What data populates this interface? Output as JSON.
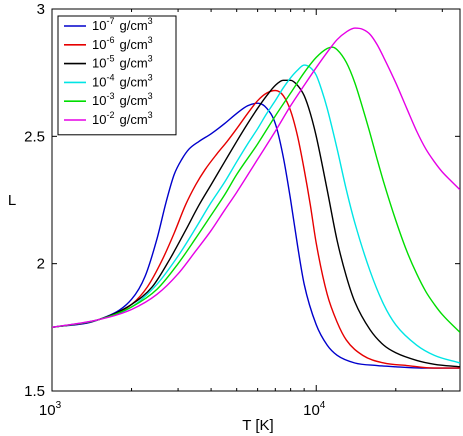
{
  "chart_data": {
    "type": "line",
    "title": "",
    "xlabel": "T [K]",
    "ylabel": "L",
    "xscale": "log",
    "xlim": [
      1000,
      35000
    ],
    "ylim": [
      1.5,
      3.0
    ],
    "grid": false,
    "legend_position": "top-left",
    "x_ticks": [
      {
        "value": 1000,
        "base": "10",
        "exp": "3"
      },
      {
        "value": 10000,
        "base": "10",
        "exp": "4"
      }
    ],
    "y_ticks": [
      {
        "value": 1.5,
        "label": "1.5"
      },
      {
        "value": 2.0,
        "label": "2"
      },
      {
        "value": 2.5,
        "label": "2.5"
      },
      {
        "value": 3.0,
        "label": "3"
      }
    ],
    "series": [
      {
        "name": "10-7 g/cm3",
        "legend_base": "10",
        "legend_exp": "-7",
        "legend_unit": "g/cm",
        "legend_unit_exp": "3",
        "color": "#0000cc",
        "x": [
          1000,
          1500,
          2000,
          2250,
          2500,
          2700,
          2900,
          3100,
          3300,
          3600,
          4000,
          4500,
          5000,
          5500,
          6000,
          6500,
          7000,
          7500,
          8000,
          8500,
          9000,
          10000,
          11000,
          12000,
          14000,
          17000,
          20000,
          25000,
          30000,
          35000
        ],
        "y": [
          1.75,
          1.78,
          1.86,
          1.95,
          2.1,
          2.24,
          2.35,
          2.41,
          2.45,
          2.48,
          2.51,
          2.55,
          2.59,
          2.62,
          2.63,
          2.61,
          2.55,
          2.42,
          2.25,
          2.07,
          1.92,
          1.76,
          1.68,
          1.64,
          1.61,
          1.6,
          1.595,
          1.59,
          1.59,
          1.59
        ]
      },
      {
        "name": "10-6 g/cm3",
        "legend_base": "10",
        "legend_exp": "-6",
        "legend_unit": "g/cm",
        "legend_unit_exp": "3",
        "color": "#e60000",
        "x": [
          1000,
          1500,
          2000,
          2300,
          2600,
          2900,
          3200,
          3500,
          3800,
          4200,
          4600,
          5000,
          5500,
          6000,
          6500,
          7000,
          7500,
          8000,
          8500,
          9000,
          9500,
          10000,
          11000,
          12000,
          13000,
          15000,
          18000,
          22000,
          28000,
          35000
        ],
        "y": [
          1.75,
          1.78,
          1.84,
          1.91,
          2.01,
          2.12,
          2.23,
          2.31,
          2.37,
          2.43,
          2.48,
          2.53,
          2.59,
          2.64,
          2.67,
          2.68,
          2.66,
          2.6,
          2.5,
          2.37,
          2.23,
          2.08,
          1.88,
          1.77,
          1.7,
          1.64,
          1.61,
          1.6,
          1.59,
          1.59
        ]
      },
      {
        "name": "10-5 g/cm3",
        "legend_base": "10",
        "legend_exp": "-5",
        "legend_unit": "g/cm",
        "legend_unit_exp": "3",
        "color": "#000000",
        "x": [
          1000,
          1500,
          2000,
          2400,
          2800,
          3200,
          3600,
          4000,
          4500,
          5000,
          5500,
          6000,
          6500,
          7000,
          7500,
          8000,
          8500,
          9000,
          9500,
          10000,
          11000,
          12000,
          13000,
          14000,
          16000,
          18000,
          20000,
          24000,
          28000,
          35000
        ],
        "y": [
          1.75,
          1.78,
          1.84,
          1.91,
          2.02,
          2.13,
          2.23,
          2.31,
          2.4,
          2.48,
          2.55,
          2.61,
          2.66,
          2.7,
          2.72,
          2.72,
          2.7,
          2.66,
          2.59,
          2.5,
          2.29,
          2.09,
          1.95,
          1.85,
          1.74,
          1.68,
          1.65,
          1.62,
          1.605,
          1.595
        ]
      },
      {
        "name": "10-4 g/cm3",
        "legend_base": "10",
        "legend_exp": "-4",
        "legend_unit": "g/cm",
        "legend_unit_exp": "3",
        "color": "#00e5e5",
        "x": [
          1000,
          1500,
          2000,
          2500,
          3000,
          3500,
          4000,
          4500,
          5000,
          5500,
          6000,
          6500,
          7000,
          7500,
          8000,
          8500,
          9000,
          9500,
          10000,
          10500,
          11000,
          12000,
          13000,
          14000,
          16000,
          18000,
          20000,
          24000,
          28000,
          35000
        ],
        "y": [
          1.75,
          1.78,
          1.83,
          1.92,
          2.03,
          2.14,
          2.24,
          2.32,
          2.4,
          2.47,
          2.53,
          2.59,
          2.64,
          2.69,
          2.73,
          2.76,
          2.78,
          2.77,
          2.74,
          2.68,
          2.61,
          2.45,
          2.29,
          2.16,
          1.97,
          1.84,
          1.76,
          1.68,
          1.64,
          1.61
        ]
      },
      {
        "name": "10-3 g/cm3",
        "legend_base": "10",
        "legend_exp": "-3",
        "legend_unit": "g/cm",
        "legend_unit_exp": "3",
        "color": "#00dd00",
        "x": [
          1000,
          1500,
          2000,
          2500,
          3000,
          3500,
          4000,
          4500,
          5000,
          6000,
          7000,
          8000,
          9000,
          10000,
          11000,
          11500,
          12000,
          13000,
          14000,
          15000,
          16000,
          17000,
          18000,
          20000,
          22000,
          24000,
          26000,
          28000,
          30000,
          35000
        ],
        "y": [
          1.75,
          1.78,
          1.83,
          1.9,
          2.0,
          2.1,
          2.19,
          2.27,
          2.35,
          2.47,
          2.58,
          2.67,
          2.75,
          2.81,
          2.845,
          2.85,
          2.84,
          2.79,
          2.71,
          2.61,
          2.51,
          2.41,
          2.32,
          2.17,
          2.05,
          1.96,
          1.89,
          1.84,
          1.8,
          1.73
        ]
      },
      {
        "name": "10-2 g/cm3",
        "legend_base": "10",
        "legend_exp": "-2",
        "legend_unit": "g/cm",
        "legend_unit_exp": "3",
        "color": "#e600e6",
        "x": [
          1000,
          1500,
          2000,
          2500,
          3000,
          3500,
          4000,
          4500,
          5000,
          6000,
          7000,
          8000,
          9000,
          10000,
          11000,
          12000,
          13000,
          14000,
          15000,
          16000,
          17000,
          18000,
          20000,
          22000,
          24000,
          26000,
          28000,
          30000,
          32000,
          35000
        ],
        "y": [
          1.75,
          1.78,
          1.82,
          1.88,
          1.96,
          2.05,
          2.13,
          2.21,
          2.28,
          2.41,
          2.52,
          2.62,
          2.7,
          2.77,
          2.83,
          2.88,
          2.91,
          2.925,
          2.92,
          2.9,
          2.86,
          2.81,
          2.71,
          2.61,
          2.52,
          2.45,
          2.4,
          2.36,
          2.33,
          2.29
        ]
      }
    ]
  }
}
